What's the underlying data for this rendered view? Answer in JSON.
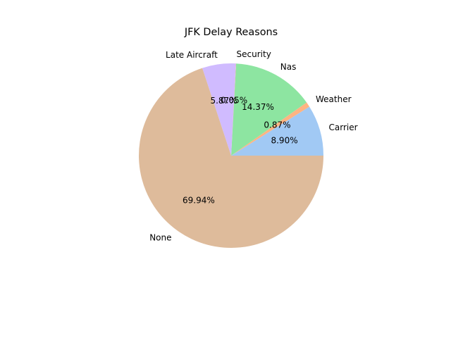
{
  "chart_data": {
    "type": "pie",
    "title": "JFK Delay Reasons",
    "slices": [
      {
        "label": "Carrier",
        "value": 8.9,
        "pct_label": "8.90%",
        "color": "#a1c9f4"
      },
      {
        "label": "Weather",
        "value": 0.87,
        "pct_label": "0.87%",
        "color": "#ffb482"
      },
      {
        "label": "Nas",
        "value": 14.37,
        "pct_label": "14.37%",
        "color": "#8de5a1"
      },
      {
        "label": "Security",
        "value": 0.05,
        "pct_label": "0.05%",
        "color": "#ff9f9b"
      },
      {
        "label": "Late Aircraft",
        "value": 5.87,
        "pct_label": "5.87%",
        "color": "#d0bbff"
      },
      {
        "label": "None",
        "value": 69.94,
        "pct_label": "69.94%",
        "color": "#debb9b"
      }
    ],
    "start_angle_deg": 0,
    "direction": "counterclockwise",
    "legend": "none"
  }
}
